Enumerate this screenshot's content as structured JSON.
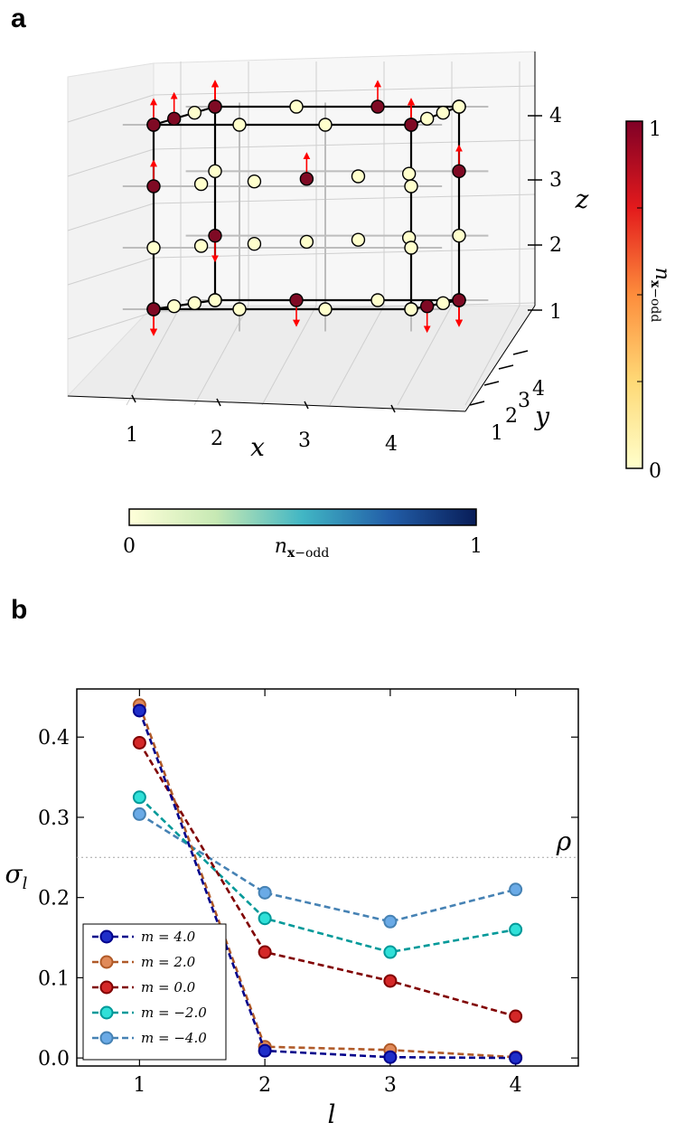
{
  "panels": {
    "a": "a",
    "b": "b"
  },
  "cube": {
    "x_label": "x",
    "y_label": "y",
    "z_label": "z",
    "x_ticks": [
      "1",
      "2",
      "3",
      "4"
    ],
    "y_ticks": [
      "1",
      "2",
      "3",
      "4"
    ],
    "z_ticks": [
      "1",
      "2",
      "3",
      "4"
    ],
    "colorbar_red": {
      "min_label": "0",
      "max_label": "1",
      "label": "n_x-odd",
      "low_color": "#ffffcc",
      "high_color": "#800026"
    },
    "colorbar_blue": {
      "min_label": "0",
      "max_label": "1",
      "label": "n_x-odd",
      "low_color": "#ffffd9",
      "high_color": "#081d58"
    }
  },
  "chart_data": [
    {
      "type": "line",
      "title": "",
      "xlabel": "l",
      "ylabel": "σ_l",
      "xlim": [
        0.5,
        4.5
      ],
      "ylim": [
        -0.01,
        0.46
      ],
      "x": [
        1,
        2,
        3,
        4
      ],
      "x_ticks": [
        "1",
        "2",
        "3",
        "4"
      ],
      "y_ticks": [
        "0.0",
        "0.1",
        "0.2",
        "0.3",
        "0.4"
      ],
      "y_tick_values": [
        0.0,
        0.1,
        0.2,
        0.3,
        0.4
      ],
      "reference_line": {
        "label": "ρ",
        "value": 0.25
      },
      "legend_position": "lower-left",
      "series": [
        {
          "name": "m = 4.0",
          "values": [
            0.433,
            0.009,
            0.001,
            0.0
          ],
          "line_color": "#00008b",
          "marker_color": "#1f2ec9"
        },
        {
          "name": "m = 2.0",
          "values": [
            0.44,
            0.014,
            0.01,
            0.001
          ],
          "line_color": "#b05a28",
          "marker_color": "#e08a5a"
        },
        {
          "name": "m = 0.0",
          "values": [
            0.393,
            0.132,
            0.096,
            0.052
          ],
          "line_color": "#800000",
          "marker_color": "#d42828"
        },
        {
          "name": "m = −2.0",
          "values": [
            0.325,
            0.174,
            0.132,
            0.16
          ],
          "line_color": "#009999",
          "marker_color": "#30e0d8"
        },
        {
          "name": "m = −4.0",
          "values": [
            0.304,
            0.206,
            0.17,
            0.21
          ],
          "line_color": "#4682b4",
          "marker_color": "#6aaae6"
        }
      ]
    }
  ]
}
